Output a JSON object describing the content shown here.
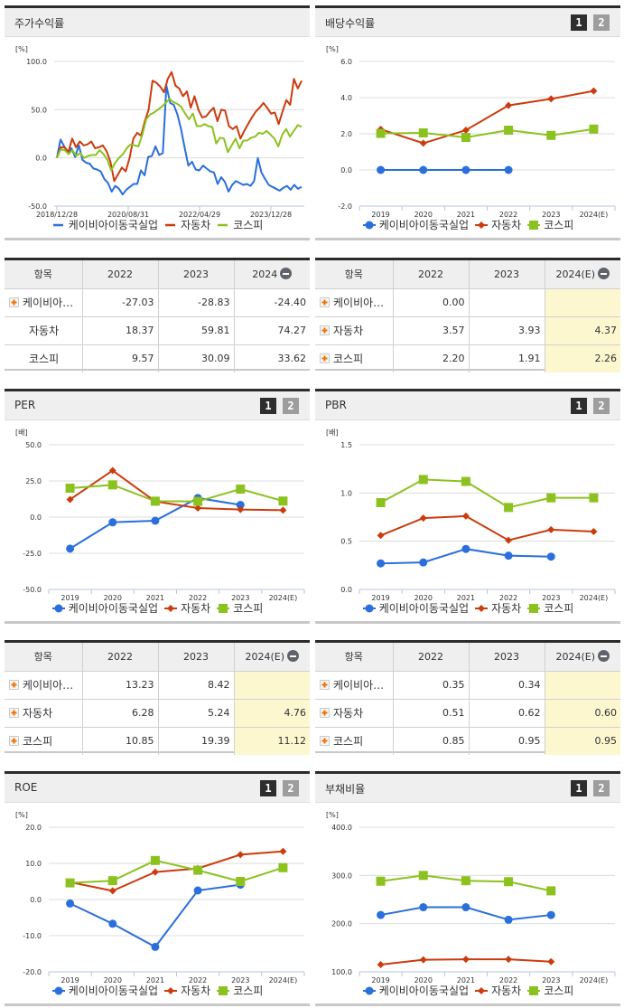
{
  "colors": {
    "company": "#2a6fdb",
    "auto": "#cc3b0d",
    "kospi": "#8cc21f",
    "estimate_bg": "#fdf7d0",
    "panel_border": "#2b2b2b",
    "header_bg": "#efefef"
  },
  "legend": {
    "company": "케이비아이동국실업",
    "auto": "자동차",
    "kospi": "코스피"
  },
  "pager": {
    "page1": "1",
    "page2": "2"
  },
  "panels": {
    "price_return": {
      "title": "주가수익률",
      "unit": "[%]"
    },
    "dividend_yield": {
      "title": "배당수익률",
      "unit": "[%]"
    },
    "per": {
      "title": "PER",
      "unit": "[배]"
    },
    "pbr": {
      "title": "PBR",
      "unit": "[배]"
    },
    "roe": {
      "title": "ROE",
      "unit": "[%]"
    },
    "debt_ratio": {
      "title": "부채비율",
      "unit": "[%]"
    }
  },
  "tables": {
    "price_return": {
      "headers": [
        "항목",
        "2022",
        "2023",
        "2024"
      ],
      "estimate_col": false,
      "rows": [
        {
          "name": "케이비아…",
          "icon": true,
          "values": [
            "-27.03",
            "-28.83",
            "-24.40"
          ]
        },
        {
          "name": "자동차",
          "icon": false,
          "values": [
            "18.37",
            "59.81",
            "74.27"
          ]
        },
        {
          "name": "코스피",
          "icon": false,
          "values": [
            "9.57",
            "30.09",
            "33.62"
          ]
        }
      ]
    },
    "dividend_yield": {
      "headers": [
        "항목",
        "2022",
        "2023",
        "2024(E)"
      ],
      "estimate_col": true,
      "rows": [
        {
          "name": "케이비아…",
          "icon": true,
          "values": [
            "0.00",
            "",
            ""
          ]
        },
        {
          "name": "자동차",
          "icon": true,
          "values": [
            "3.57",
            "3.93",
            "4.37"
          ]
        },
        {
          "name": "코스피",
          "icon": true,
          "values": [
            "2.20",
            "1.91",
            "2.26"
          ]
        }
      ]
    },
    "per": {
      "headers": [
        "항목",
        "2022",
        "2023",
        "2024(E)"
      ],
      "estimate_col": true,
      "rows": [
        {
          "name": "케이비아…",
          "icon": true,
          "values": [
            "13.23",
            "8.42",
            ""
          ]
        },
        {
          "name": "자동차",
          "icon": true,
          "values": [
            "6.28",
            "5.24",
            "4.76"
          ]
        },
        {
          "name": "코스피",
          "icon": true,
          "values": [
            "10.85",
            "19.39",
            "11.12"
          ]
        }
      ]
    },
    "pbr": {
      "headers": [
        "항목",
        "2022",
        "2023",
        "2024(E)"
      ],
      "estimate_col": true,
      "rows": [
        {
          "name": "케이비아…",
          "icon": true,
          "values": [
            "0.35",
            "0.34",
            ""
          ]
        },
        {
          "name": "자동차",
          "icon": true,
          "values": [
            "0.51",
            "0.62",
            "0.60"
          ]
        },
        {
          "name": "코스피",
          "icon": true,
          "values": [
            "0.85",
            "0.95",
            "0.95"
          ]
        }
      ]
    }
  },
  "chart_data": [
    {
      "id": "price_return",
      "type": "line",
      "title": "주가수익률",
      "ylabel": "[%]",
      "ylim": [
        -50,
        100
      ],
      "yticks": [
        "100.0",
        "50.0",
        "0.0",
        "-50.0"
      ],
      "x_tick_labels": [
        "2018/12/28",
        "2020/08/31",
        "2022/04/29",
        "2023/12/28"
      ],
      "x_tick_positions": [
        0,
        20,
        40,
        60
      ],
      "markers": false,
      "series": [
        {
          "name": "케이비아이동국실업",
          "key": "company",
          "values": [
            0,
            19,
            12,
            5,
            10,
            1,
            13,
            -2,
            -5,
            -6,
            -11,
            -12,
            -14,
            -22,
            -26,
            -35,
            -29,
            -32,
            -38,
            -33,
            -30,
            -27,
            -27,
            -13,
            -18,
            1,
            2,
            12,
            3,
            5,
            75,
            57,
            55,
            45,
            30,
            10,
            -8,
            -4,
            -12,
            -13,
            -8,
            -11,
            -14,
            -15,
            -27,
            -20,
            -25,
            -35,
            -28,
            -24,
            -26,
            -28,
            -27,
            -29,
            -24,
            0,
            -15,
            -22,
            -28,
            -30,
            -32,
            -34,
            -31,
            -29,
            -33,
            -28,
            -32,
            -30
          ]
        },
        {
          "name": "자동차",
          "key": "auto",
          "values": [
            0,
            11,
            11,
            6,
            20,
            11,
            17,
            13,
            14,
            17,
            10,
            11,
            13,
            7,
            -4,
            -24,
            -17,
            -10,
            -14,
            0,
            20,
            26,
            23,
            38,
            50,
            80,
            78,
            74,
            68,
            82,
            89,
            75,
            72,
            64,
            69,
            52,
            64,
            50,
            42,
            43,
            48,
            52,
            38,
            50,
            49,
            33,
            30,
            33,
            20,
            28,
            35,
            42,
            48,
            52,
            57,
            52,
            46,
            47,
            35,
            48,
            60,
            55,
            82,
            72,
            80
          ]
        },
        {
          "name": "코스피",
          "key": "kospi",
          "values": [
            0,
            9,
            8,
            4,
            8,
            2,
            5,
            0,
            2,
            3,
            3,
            8,
            4,
            -2,
            -13,
            -5,
            0,
            4,
            10,
            14,
            13,
            12,
            24,
            40,
            45,
            47,
            50,
            53,
            57,
            61,
            58,
            56,
            53,
            46,
            40,
            46,
            33,
            33,
            35,
            33,
            32,
            15,
            21,
            20,
            6,
            13,
            20,
            10,
            18,
            18,
            21,
            22,
            26,
            25,
            28,
            24,
            20,
            12,
            24,
            30,
            22,
            28,
            34,
            32
          ]
        }
      ]
    },
    {
      "id": "dividend_yield",
      "type": "line",
      "title": "배당수익률",
      "ylabel": "[%]",
      "ylim": [
        -2,
        6
      ],
      "yticks": [
        "6.0",
        "4.0",
        "2.0",
        "0.0",
        "-2.0"
      ],
      "categories": [
        "2019",
        "2020",
        "2021",
        "2022",
        "2023",
        "2024(E)"
      ],
      "series": [
        {
          "name": "케이비아이동국실업",
          "key": "company",
          "marker": "circle",
          "values": [
            0.0,
            0.0,
            0.0,
            0.0,
            null,
            null
          ]
        },
        {
          "name": "자동차",
          "key": "auto",
          "marker": "diamond",
          "values": [
            2.25,
            1.48,
            2.2,
            3.57,
            3.93,
            4.37
          ]
        },
        {
          "name": "코스피",
          "key": "kospi",
          "marker": "square",
          "values": [
            2.02,
            2.05,
            1.8,
            2.2,
            1.91,
            2.26
          ]
        }
      ]
    },
    {
      "id": "per",
      "type": "line",
      "title": "PER",
      "ylabel": "[배]",
      "ylim": [
        -50,
        50
      ],
      "yticks": [
        "50.0",
        "25.0",
        "0.0",
        "-25.0",
        "-50.0"
      ],
      "categories": [
        "2019",
        "2020",
        "2021",
        "2022",
        "2023",
        "2024(E)"
      ],
      "series": [
        {
          "name": "케이비아이동국실업",
          "key": "company",
          "marker": "circle",
          "values": [
            -21.8,
            -3.6,
            -2.5,
            13.23,
            8.42,
            null
          ]
        },
        {
          "name": "자동차",
          "key": "auto",
          "marker": "diamond",
          "values": [
            12.2,
            32.2,
            10.8,
            6.28,
            5.24,
            4.76
          ]
        },
        {
          "name": "코스피",
          "key": "kospi",
          "marker": "square",
          "values": [
            20.0,
            22.3,
            11.0,
            10.85,
            19.39,
            11.12
          ]
        }
      ]
    },
    {
      "id": "pbr",
      "type": "line",
      "title": "PBR",
      "ylabel": "[배]",
      "ylim": [
        0,
        1.5
      ],
      "yticks": [
        "1.5",
        "1.0",
        "0.5",
        "0.0"
      ],
      "categories": [
        "2019",
        "2020",
        "2021",
        "2022",
        "2023",
        "2024(E)"
      ],
      "series": [
        {
          "name": "케이비아이동국실업",
          "key": "company",
          "marker": "circle",
          "values": [
            0.27,
            0.28,
            0.42,
            0.35,
            0.34,
            null
          ]
        },
        {
          "name": "자동차",
          "key": "auto",
          "marker": "diamond",
          "values": [
            0.56,
            0.74,
            0.76,
            0.51,
            0.62,
            0.6
          ]
        },
        {
          "name": "코스피",
          "key": "kospi",
          "marker": "square",
          "values": [
            0.9,
            1.14,
            1.12,
            0.85,
            0.95,
            0.95
          ]
        }
      ]
    },
    {
      "id": "roe",
      "type": "line",
      "title": "ROE",
      "ylabel": "[%]",
      "ylim": [
        -20,
        20
      ],
      "yticks": [
        "20.0",
        "10.0",
        "0.0",
        "-10.0",
        "-20.0"
      ],
      "categories": [
        "2019",
        "2020",
        "2021",
        "2022",
        "2023",
        "2024(E)"
      ],
      "series": [
        {
          "name": "케이비아이동국실업",
          "key": "company",
          "marker": "circle",
          "values": [
            -1.1,
            -6.7,
            -13.1,
            2.5,
            4.1,
            null
          ]
        },
        {
          "name": "자동차",
          "key": "auto",
          "marker": "diamond",
          "values": [
            4.8,
            2.4,
            7.6,
            8.6,
            12.4,
            13.3
          ]
        },
        {
          "name": "코스피",
          "key": "kospi",
          "marker": "square",
          "values": [
            4.6,
            5.2,
            10.8,
            8.1,
            5.0,
            8.8
          ]
        }
      ]
    },
    {
      "id": "debt_ratio",
      "type": "line",
      "title": "부채비율",
      "ylabel": "[%]",
      "ylim": [
        100,
        400
      ],
      "yticks": [
        "400.0",
        "300.0",
        "200.0",
        "100.0"
      ],
      "categories": [
        "2019",
        "2020",
        "2021",
        "2022",
        "2023",
        "2024(E)"
      ],
      "series": [
        {
          "name": "케이비아이동국실업",
          "key": "company",
          "marker": "circle",
          "values": [
            218,
            234,
            234,
            208,
            218,
            null
          ]
        },
        {
          "name": "자동차",
          "key": "auto",
          "marker": "diamond",
          "values": [
            115,
            125,
            126,
            126,
            121,
            null
          ]
        },
        {
          "name": "코스피",
          "key": "kospi",
          "marker": "square",
          "values": [
            288,
            300,
            289,
            287,
            268,
            null
          ]
        }
      ]
    }
  ]
}
